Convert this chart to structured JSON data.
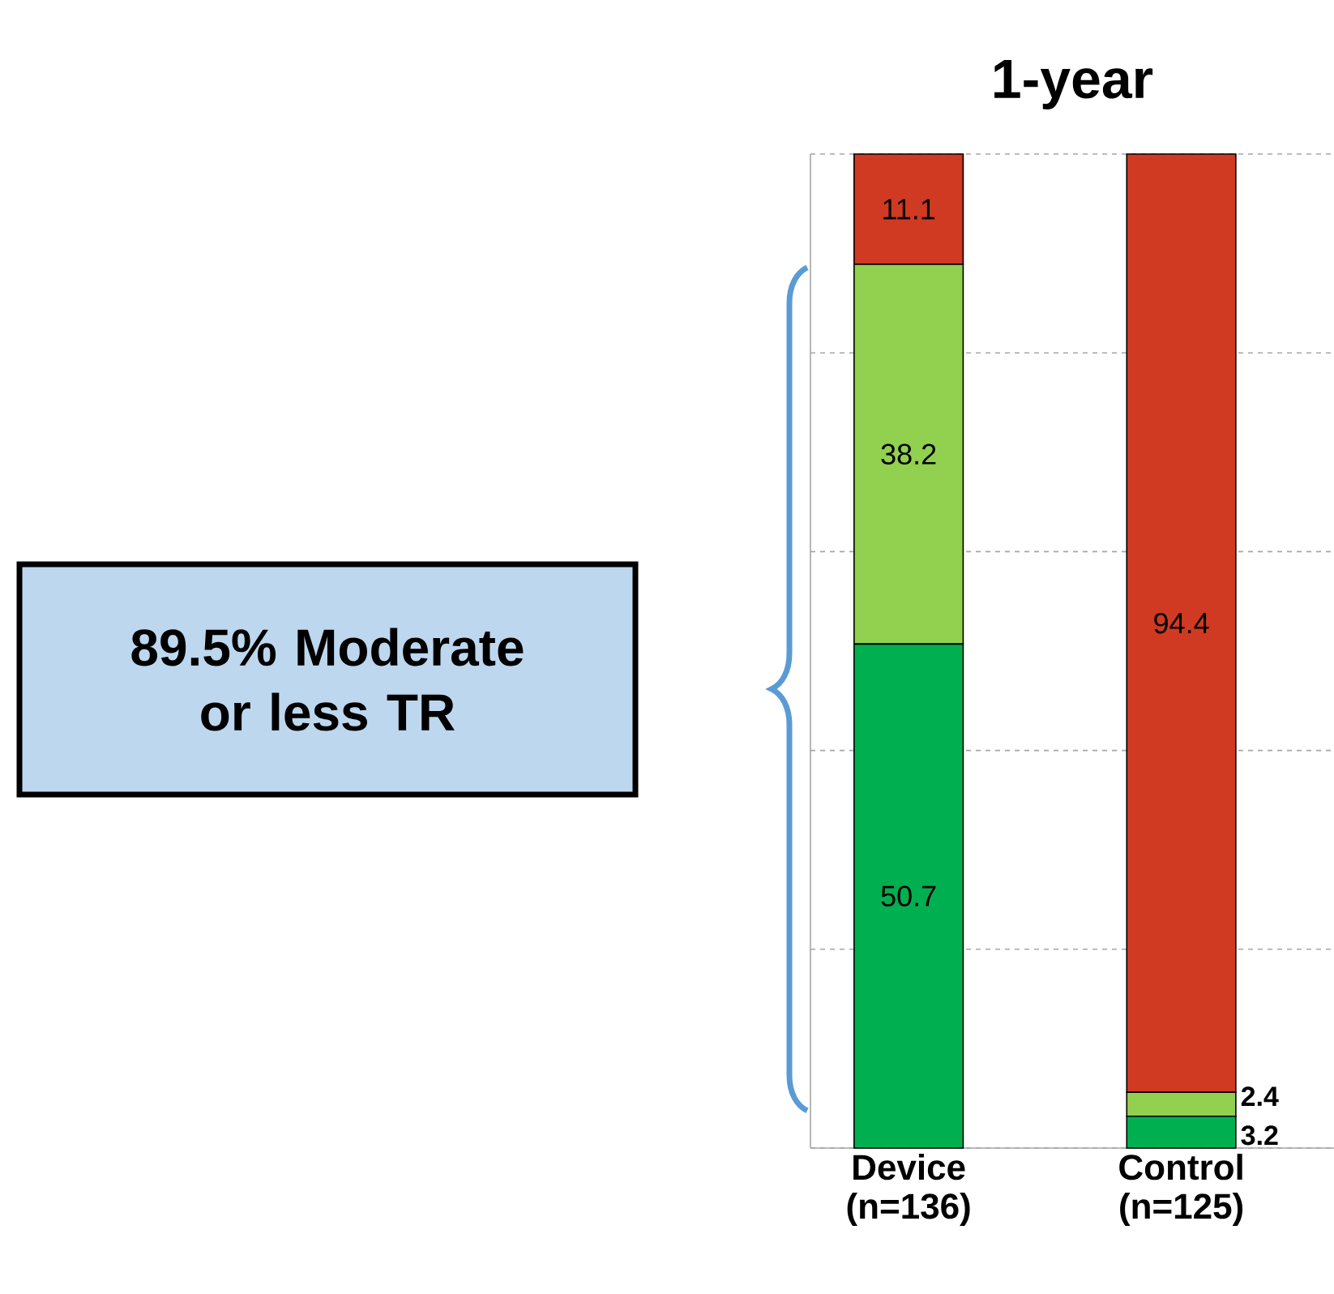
{
  "chart_data": {
    "type": "bar",
    "stacked": true,
    "title": "1-year",
    "categories": [
      "Device (n=136)",
      "Control (n=125)"
    ],
    "series": [
      {
        "color": "#00b050",
        "values": [
          50.7,
          3.2
        ]
      },
      {
        "color": "#92d050",
        "values": [
          38.2,
          2.4
        ]
      },
      {
        "color": "#d03a22",
        "values": [
          11.1,
          94.4
        ]
      }
    ],
    "ylim": [
      0,
      100
    ],
    "yticks": [
      {
        "value": 0,
        "label": null
      },
      {
        "value": 20,
        "label": null
      },
      {
        "value": 40,
        "label": null
      },
      {
        "value": 60,
        "label": null
      },
      {
        "value": 80,
        "label": null
      },
      {
        "value": 100,
        "label": null
      }
    ],
    "grid": "y",
    "tick_labels": "x",
    "data_labels": true,
    "annotations": [
      "89.5% Moderate or less TR"
    ]
  }
}
